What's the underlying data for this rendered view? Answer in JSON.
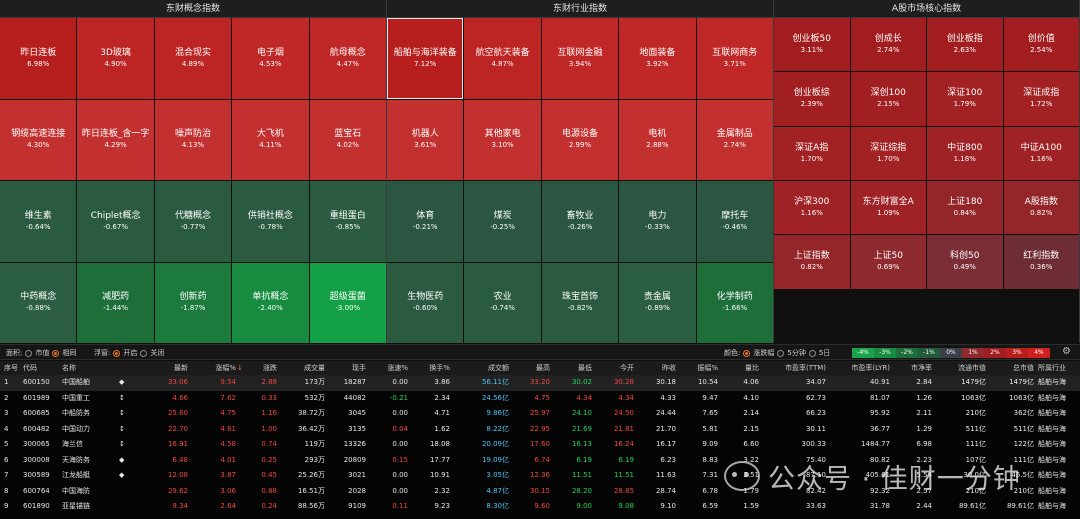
{
  "panels": [
    {
      "title": "东财概念指数",
      "cols": 5,
      "rows": 4,
      "cells": [
        {
          "name": "昨日连板",
          "pct": "6.98%",
          "color": "#b71e1e"
        },
        {
          "name": "3D玻璃",
          "pct": "4.90%",
          "color": "#bd2424"
        },
        {
          "name": "混合现实",
          "pct": "4.89%",
          "color": "#bd2424"
        },
        {
          "name": "电子烟",
          "pct": "4.53%",
          "color": "#c02727"
        },
        {
          "name": "航母概念",
          "pct": "4.47%",
          "color": "#c02727"
        },
        {
          "name": "钢缆高速连接",
          "pct": "4.30%",
          "color": "#c23030"
        },
        {
          "name": "昨日连板_含一字",
          "pct": "4.29%",
          "color": "#c23030"
        },
        {
          "name": "噪声防治",
          "pct": "4.13%",
          "color": "#c23030"
        },
        {
          "name": "大飞机",
          "pct": "4.11%",
          "color": "#c23030"
        },
        {
          "name": "蓝宝石",
          "pct": "4.02%",
          "color": "#c23030"
        },
        {
          "name": "维生素",
          "pct": "-0.64%",
          "color": "#2a5a40"
        },
        {
          "name": "Chiplet概念",
          "pct": "-0.67%",
          "color": "#2a5a40"
        },
        {
          "name": "代糖概念",
          "pct": "-0.77%",
          "color": "#2a5a40"
        },
        {
          "name": "供销社概念",
          "pct": "-0.78%",
          "color": "#2a5a40"
        },
        {
          "name": "重组蛋白",
          "pct": "-0.85%",
          "color": "#2b5c41"
        },
        {
          "name": "中药概念",
          "pct": "-0.88%",
          "color": "#2b5e42"
        },
        {
          "name": "减肥药",
          "pct": "-1.44%",
          "color": "#1e6e3a"
        },
        {
          "name": "创新药",
          "pct": "-1.87%",
          "color": "#1b7a3c"
        },
        {
          "name": "单抗概念",
          "pct": "-2.40%",
          "color": "#178c40"
        },
        {
          "name": "超级蛋菌",
          "pct": "-3.00%",
          "color": "#14a046"
        }
      ]
    },
    {
      "title": "东财行业指数",
      "cols": 5,
      "rows": 4,
      "cells": [
        {
          "name": "船舶与海洋装备",
          "pct": "7.12%",
          "color": "#b71e1e",
          "selected": true
        },
        {
          "name": "航空航天装备",
          "pct": "4.87%",
          "color": "#bd2424"
        },
        {
          "name": "互联网金融",
          "pct": "3.94%",
          "color": "#c02727"
        },
        {
          "name": "地面装备",
          "pct": "3.92%",
          "color": "#c02727"
        },
        {
          "name": "互联网商务",
          "pct": "3.71%",
          "color": "#c02727"
        },
        {
          "name": "机器人",
          "pct": "3.61%",
          "color": "#c23030"
        },
        {
          "name": "其他家电",
          "pct": "3.10%",
          "color": "#c23030"
        },
        {
          "name": "电源设备",
          "pct": "2.99%",
          "color": "#c23030"
        },
        {
          "name": "电机",
          "pct": "2.88%",
          "color": "#c23030"
        },
        {
          "name": "金属制品",
          "pct": "2.74%",
          "color": "#c23030"
        },
        {
          "name": "体育",
          "pct": "-0.21%",
          "color": "#2b5641"
        },
        {
          "name": "煤炭",
          "pct": "-0.25%",
          "color": "#2b5641"
        },
        {
          "name": "畜牧业",
          "pct": "-0.26%",
          "color": "#2b5641"
        },
        {
          "name": "电力",
          "pct": "-0.33%",
          "color": "#2b5641"
        },
        {
          "name": "摩托车",
          "pct": "-0.46%",
          "color": "#2b5641"
        },
        {
          "name": "生物医药",
          "pct": "-0.60%",
          "color": "#2a5a40"
        },
        {
          "name": "农业",
          "pct": "-0.74%",
          "color": "#2a5a40"
        },
        {
          "name": "珠宝首饰",
          "pct": "-0.82%",
          "color": "#2a5a40"
        },
        {
          "name": "贵金属",
          "pct": "-0.89%",
          "color": "#2b5e42"
        },
        {
          "name": "化学制药",
          "pct": "-1.66%",
          "color": "#1e6e3a"
        }
      ]
    },
    {
      "title": "A股市场核心指数",
      "cols": 4,
      "rows": 6,
      "cells": [
        {
          "name": "创业板50",
          "pct": "3.11%",
          "color": "#a11d1f"
        },
        {
          "name": "创成长",
          "pct": "2.74%",
          "color": "#a11d1f"
        },
        {
          "name": "创业板指",
          "pct": "2.63%",
          "color": "#a11d1f"
        },
        {
          "name": "创价值",
          "pct": "2.54%",
          "color": "#a11d1f"
        },
        {
          "name": "创业板综",
          "pct": "2.39%",
          "color": "#a21f21"
        },
        {
          "name": "深创100",
          "pct": "2.15%",
          "color": "#a21f21"
        },
        {
          "name": "深证100",
          "pct": "1.79%",
          "color": "#a22123"
        },
        {
          "name": "深证成指",
          "pct": "1.72%",
          "color": "#a22123"
        },
        {
          "name": "深证A指",
          "pct": "1.70%",
          "color": "#a22123"
        },
        {
          "name": "深证综指",
          "pct": "1.70%",
          "color": "#a22123"
        },
        {
          "name": "中证800",
          "pct": "1.18%",
          "color": "#9e2226"
        },
        {
          "name": "中证A100",
          "pct": "1.16%",
          "color": "#9e2226"
        },
        {
          "name": "沪深300",
          "pct": "1.16%",
          "color": "#9e2226"
        },
        {
          "name": "东方财富全A",
          "pct": "1.09%",
          "color": "#9e2226"
        },
        {
          "name": "上证180",
          "pct": "0.84%",
          "color": "#942528"
        },
        {
          "name": "A股指数",
          "pct": "0.82%",
          "color": "#942528"
        },
        {
          "name": "上证指数",
          "pct": "0.82%",
          "color": "#942528"
        },
        {
          "name": "上证50",
          "pct": "0.69%",
          "color": "#8e2a2d"
        },
        {
          "name": "科创50",
          "pct": "0.49%",
          "color": "#7a2d35"
        },
        {
          "name": "红利指数",
          "pct": "0.36%",
          "color": "#6e2c34"
        }
      ]
    }
  ],
  "controls": {
    "area_label": "面积:",
    "area_opt1": "市值",
    "area_opt2": "相同",
    "float_label": "浮窗:",
    "float_opt1": "开启",
    "float_opt2": "关闭",
    "color_label": "颜色:",
    "color_opt1": "涨跌幅",
    "color_opt2": "5分钟",
    "color_opt3": "5日",
    "legend": [
      {
        "t": "-4%",
        "c": "#19a34a"
      },
      {
        "t": "-3%",
        "c": "#178c40"
      },
      {
        "t": "-2%",
        "c": "#1e6e3a"
      },
      {
        "t": "-1%",
        "c": "#245a3c"
      },
      {
        "t": "0%",
        "c": "#3a3f4a"
      },
      {
        "t": "1%",
        "c": "#8e2a2d"
      },
      {
        "t": "2%",
        "c": "#a11d1f"
      },
      {
        "t": "3%",
        "c": "#b81e1e"
      },
      {
        "t": "4%",
        "c": "#cf1f1f"
      }
    ]
  },
  "table": {
    "headers": [
      "序号",
      "代码",
      "名称",
      "",
      "最新",
      "涨幅%",
      "涨跌",
      "成交量",
      "现手",
      "涨速%",
      "换手%",
      "成交额",
      "最高",
      "最低",
      "今开",
      "昨收",
      "振幅%",
      "量比",
      "市盈率(TTM)",
      "市盈率(LYR)",
      "市净率",
      "流通市值",
      "总市值",
      "所属行业"
    ],
    "sort_mark": "↓",
    "rows": [
      [
        "1",
        "600150",
        "中国船舶",
        "◆",
        "33.06",
        "9.54",
        "2.88",
        "173万",
        "18287",
        "0.00",
        "3.86",
        "56.11亿",
        "33.20",
        "30.02",
        "30.28",
        "30.18",
        "10.54",
        "4.06",
        "34.07",
        "40.91",
        "2.84",
        "1479亿",
        "1479亿",
        "船舶与海"
      ],
      [
        "2",
        "601989",
        "中国重工",
        "↕",
        "4.66",
        "7.62",
        "0.33",
        "532万",
        "44082",
        "-0.21",
        "2.34",
        "24.56亿",
        "4.75",
        "4.34",
        "4.34",
        "4.33",
        "9.47",
        "4.10",
        "62.73",
        "81.07",
        "1.26",
        "1063亿",
        "1063亿",
        "船舶与海"
      ],
      [
        "3",
        "600685",
        "中船防务",
        "↕",
        "25.60",
        "4.75",
        "1.16",
        "38.72万",
        "3045",
        "0.00",
        "4.71",
        "9.86亿",
        "25.97",
        "24.10",
        "24.50",
        "24.44",
        "7.65",
        "2.14",
        "66.23",
        "95.92",
        "2.11",
        "210亿",
        "362亿",
        "船舶与海"
      ],
      [
        "4",
        "600482",
        "中国动力",
        "↕",
        "22.70",
        "4.61",
        "1.00",
        "36.42万",
        "3135",
        "0.04",
        "1.62",
        "8.22亿",
        "22.95",
        "21.69",
        "21.81",
        "21.70",
        "5.81",
        "2.15",
        "30.11",
        "36.77",
        "1.29",
        "511亿",
        "511亿",
        "船舶与海"
      ],
      [
        "5",
        "300065",
        "海兰信",
        "↕",
        "16.91",
        "4.58",
        "0.74",
        "119万",
        "13326",
        "0.00",
        "18.08",
        "20.09亿",
        "17.60",
        "16.13",
        "16.24",
        "16.17",
        "9.09",
        "6.60",
        "300.33",
        "1484.77",
        "6.98",
        "111亿",
        "122亿",
        "船舶与海"
      ],
      [
        "6",
        "300008",
        "天海防务",
        "◆",
        "6.48",
        "4.01",
        "0.25",
        "293万",
        "20809",
        "0.15",
        "17.77",
        "19.09亿",
        "6.74",
        "6.19",
        "6.19",
        "6.23",
        "8.83",
        "3.22",
        "75.40",
        "80.82",
        "2.23",
        "107亿",
        "111亿",
        "船舶与海"
      ],
      [
        "7",
        "300589",
        "江龙船艇",
        "◆",
        "12.08",
        "3.87",
        "0.45",
        "25.26万",
        "3021",
        "0.00",
        "10.91",
        "3.05亿",
        "12.36",
        "11.51",
        "11.51",
        "11.63",
        "7.31",
        "2.51",
        "-87.10",
        "405.61",
        "5.54",
        "30.0亿",
        "45.5亿",
        "船舶与海"
      ],
      [
        "8",
        "600764",
        "中国海防",
        "",
        "29.62",
        "3.06",
        "0.88",
        "16.51万",
        "2028",
        "0.00",
        "2.32",
        "4.87亿",
        "30.15",
        "28.20",
        "28.85",
        "28.74",
        "6.78",
        "1.79",
        "82.42",
        "92.32",
        "2.57",
        "210亿",
        "210亿",
        "船舶与海"
      ],
      [
        "9",
        "601890",
        "亚星锚链",
        "",
        "9.34",
        "2.64",
        "0.24",
        "88.56万",
        "9109",
        "0.11",
        "9.23",
        "8.30亿",
        "9.60",
        "9.00",
        "9.08",
        "9.10",
        "6.59",
        "1.59",
        "33.63",
        "31.78",
        "2.44",
        "89.61亿",
        "89.61亿",
        "船舶与海"
      ]
    ]
  },
  "watermark": "公众号 · 佳财一分钟"
}
